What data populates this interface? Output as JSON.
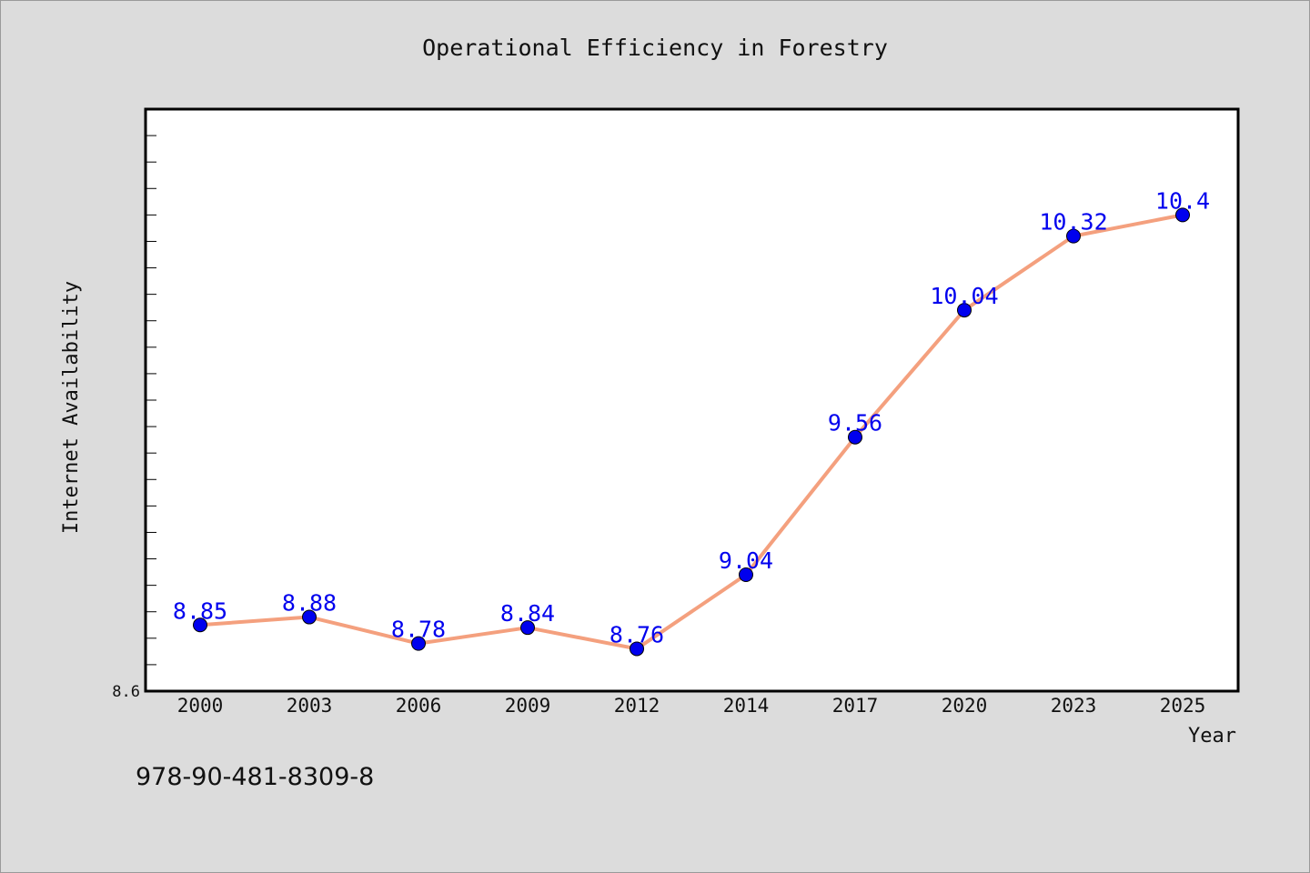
{
  "chart_data": {
    "type": "line",
    "title": "Operational Efficiency in Forestry",
    "xlabel": "Year",
    "ylabel": "Internet Availability",
    "categories": [
      "2000",
      "2003",
      "2006",
      "2009",
      "2012",
      "2014",
      "2017",
      "2020",
      "2023",
      "2025"
    ],
    "series": [
      {
        "values": [
          8.85,
          8.88,
          8.78,
          8.84,
          8.76,
          9.04,
          9.56,
          10.04,
          10.32,
          10.4
        ]
      }
    ],
    "data_labels": [
      "8.85",
      "8.88",
      "8.78",
      "8.84",
      "8.76",
      "9.04",
      "9.56",
      "10.04",
      "10.32",
      "10.4"
    ],
    "y_tick_labels": [
      "8.6"
    ],
    "ylim": [
      8.6,
      10.8
    ],
    "grid": false,
    "legend": "none",
    "colors": {
      "line": "#f4a07e",
      "marker": "#0000ee",
      "data_label": "#0000ee",
      "background": "#dcdcdc",
      "plot_background": "#ffffff"
    }
  },
  "footer": {
    "isbn": "978-90-481-8309-8"
  }
}
